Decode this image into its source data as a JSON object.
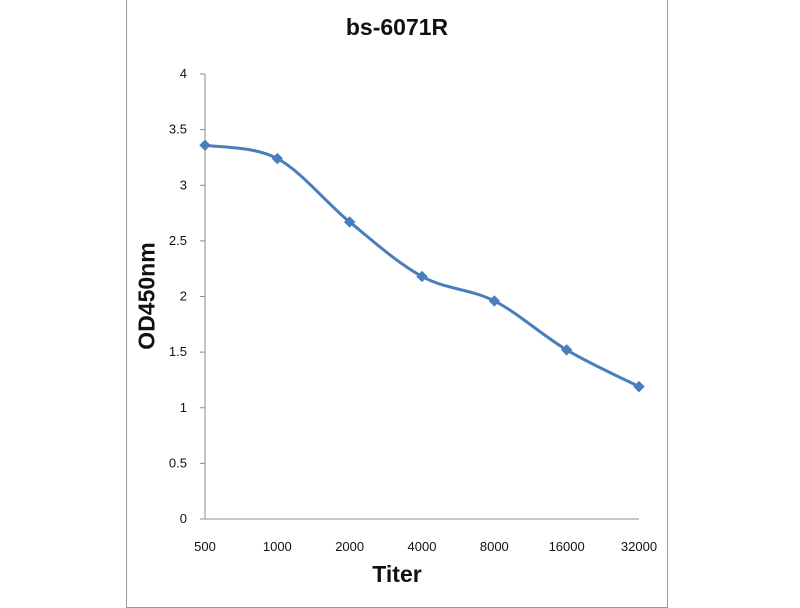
{
  "chart_data": {
    "type": "line",
    "title": "bs-6071R",
    "xlabel": "Titer",
    "ylabel": "OD450nm",
    "categories": [
      "500",
      "1000",
      "2000",
      "4000",
      "8000",
      "16000",
      "32000"
    ],
    "series": [
      {
        "name": "bs-6071R",
        "values": [
          3.36,
          3.24,
          2.67,
          2.18,
          1.96,
          1.52,
          1.19
        ],
        "color": "#4a7ebb"
      }
    ],
    "ylim": [
      0,
      4
    ],
    "yticks": [
      0,
      0.5,
      1,
      1.5,
      2,
      2.5,
      3,
      3.5,
      4
    ],
    "ytick_labels": [
      "0",
      "0.5",
      "1",
      "1.5",
      "2",
      "2.5",
      "3",
      "3.5",
      "4"
    ],
    "grid": false,
    "marker": "diamond",
    "smooth": true
  }
}
